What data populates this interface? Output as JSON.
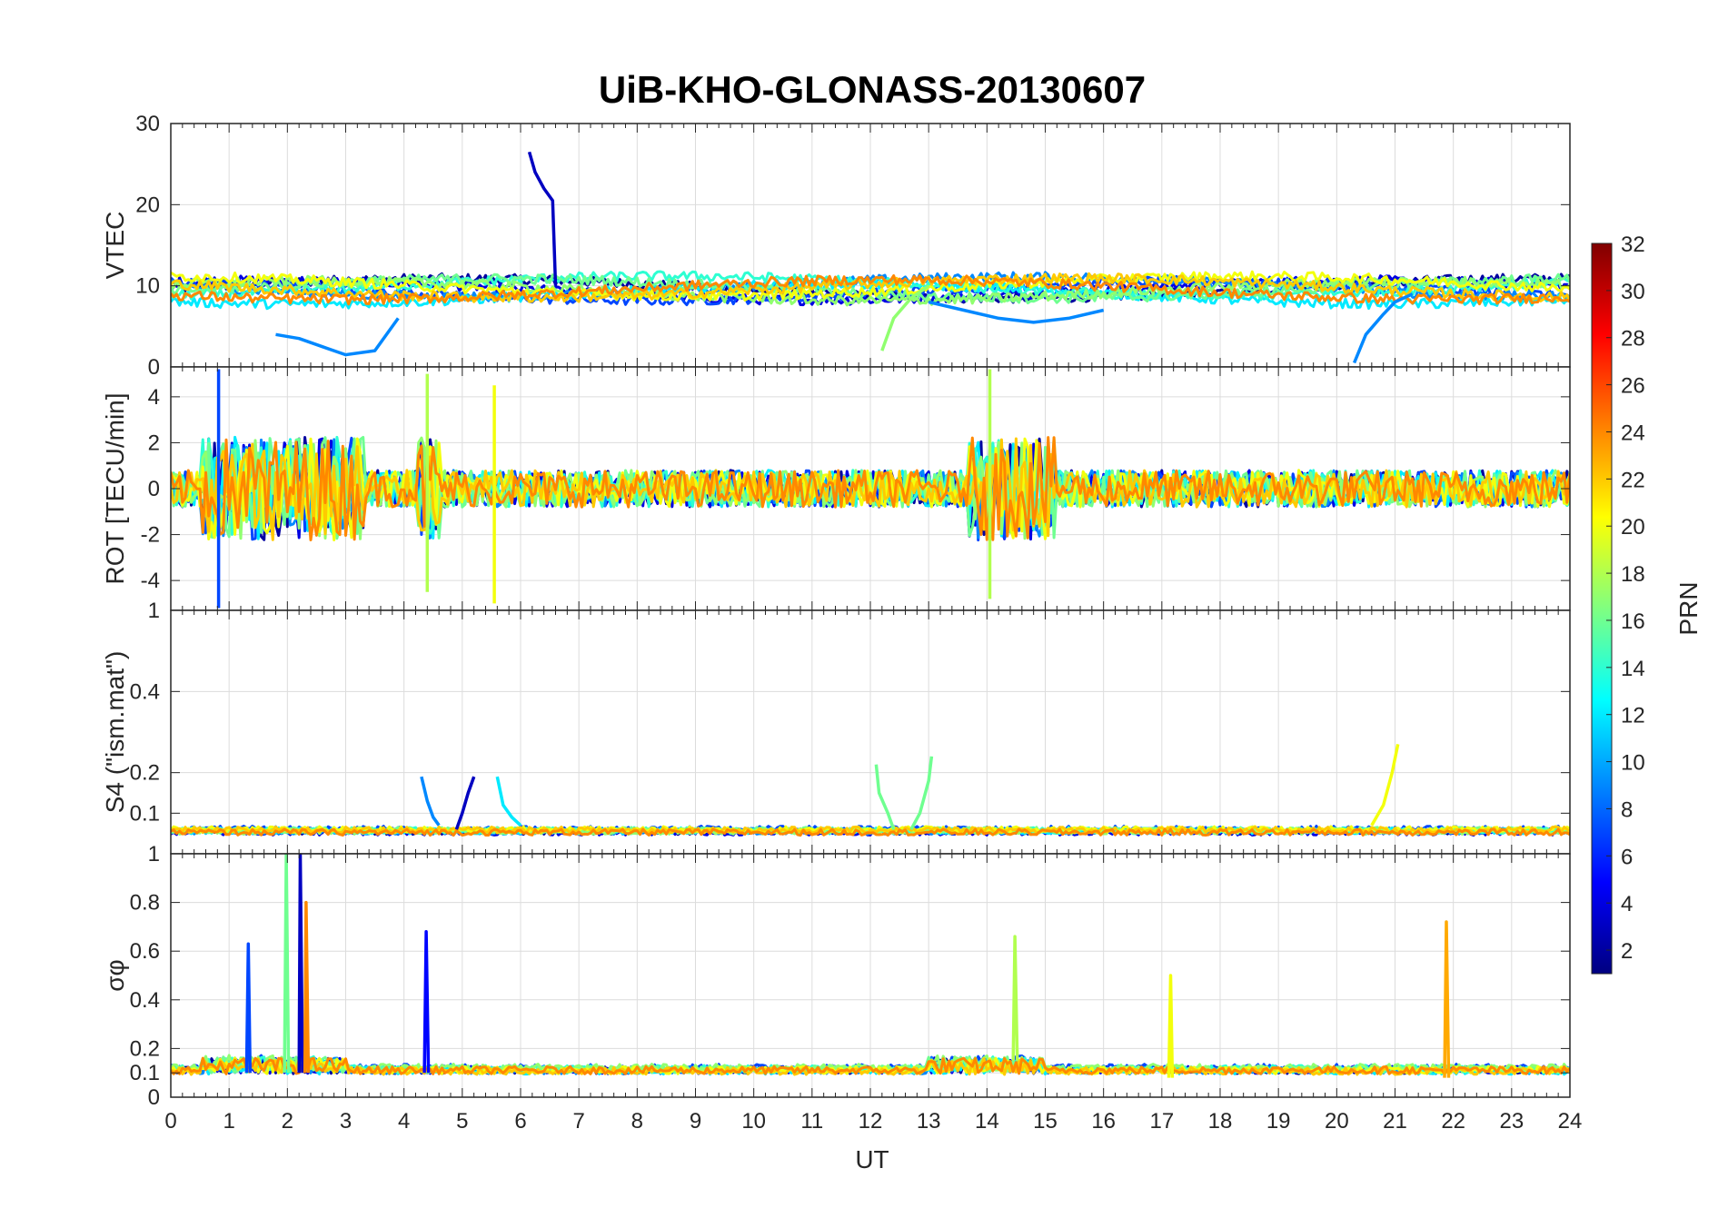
{
  "chart_data": {
    "type": "line",
    "title": "UiB-KHO-GLONASS-20130607",
    "xlabel": "UT",
    "xlim": [
      0,
      24
    ],
    "x_ticks": [
      "0",
      "1",
      "2",
      "3",
      "4",
      "5",
      "6",
      "7",
      "8",
      "9",
      "10",
      "11",
      "12",
      "13",
      "14",
      "15",
      "16",
      "17",
      "18",
      "19",
      "20",
      "21",
      "22",
      "23",
      "24"
    ],
    "grid": true,
    "colormap": "jet",
    "panels": [
      {
        "ylabel": "VTEC",
        "ylim": [
          0,
          30
        ],
        "y_ticks": [
          {
            "v": 0,
            "t": "0"
          },
          {
            "v": 10,
            "t": "10"
          },
          {
            "v": 20,
            "t": "20"
          },
          {
            "v": 30,
            "t": "30"
          }
        ],
        "baseline": 9.5,
        "noise": 1.2
      },
      {
        "ylabel": "ROT [TECU/min]",
        "ylim": [
          -5.3,
          5.3
        ],
        "y_ticks": [
          {
            "v": -4,
            "t": "-4"
          },
          {
            "v": -2,
            "t": "-2"
          },
          {
            "v": 0,
            "t": "0"
          },
          {
            "v": 2,
            "t": "2"
          },
          {
            "v": 4,
            "t": "4"
          }
        ],
        "baseline": 0,
        "noise": 0.8
      },
      {
        "ylabel": "S4 (\"ism.mat\")",
        "ylim": [
          0,
          0.6
        ],
        "y_ticks": [
          {
            "v": 0.1,
            "t": "0.1"
          },
          {
            "v": 0.2,
            "t": "0.2"
          },
          {
            "v": 0.4,
            "t": "0.4"
          }
        ],
        "top_label": "1",
        "baseline": 0.05,
        "noise": 0.015
      },
      {
        "ylabel": "σφ",
        "ylim": [
          0,
          1
        ],
        "y_ticks": [
          {
            "v": 0,
            "t": "0"
          },
          {
            "v": 0.1,
            "t": "0.1"
          },
          {
            "v": 0.2,
            "t": "0.2"
          },
          {
            "v": 0.4,
            "t": "0.4"
          },
          {
            "v": 0.6,
            "t": "0.6"
          },
          {
            "v": 0.8,
            "t": "0.8"
          },
          {
            "v": 1,
            "t": "1"
          }
        ],
        "baseline": 0.1,
        "noise": 0.03
      }
    ],
    "colorbar": {
      "label": "PRN",
      "range": [
        1,
        32
      ],
      "ticks": [
        "2",
        "4",
        "6",
        "8",
        "10",
        "12",
        "14",
        "16",
        "18",
        "20",
        "22",
        "24",
        "26",
        "28",
        "30",
        "32"
      ]
    },
    "series": [
      {
        "prn": 2,
        "segments": [
          [
            0,
            24
          ]
        ]
      },
      {
        "prn": 4,
        "segments": [
          [
            0,
            24
          ]
        ]
      },
      {
        "prn": 7,
        "segments": [
          [
            0,
            24
          ]
        ]
      },
      {
        "prn": 9,
        "segments": [
          [
            0,
            24
          ]
        ]
      },
      {
        "prn": 12,
        "segments": [
          [
            0,
            24
          ]
        ]
      },
      {
        "prn": 14,
        "segments": [
          [
            0,
            24
          ]
        ]
      },
      {
        "prn": 16,
        "segments": [
          [
            0,
            24
          ]
        ]
      },
      {
        "prn": 17,
        "segments": [
          [
            0,
            24
          ]
        ]
      },
      {
        "prn": 20,
        "segments": [
          [
            0,
            24
          ]
        ]
      },
      {
        "prn": 22,
        "segments": [
          [
            0,
            24
          ]
        ]
      },
      {
        "prn": 24,
        "segments": [
          [
            0,
            24
          ]
        ]
      }
    ],
    "features": [
      {
        "panel": 0,
        "prn": 3,
        "x": [
          6.15,
          6.25,
          6.4,
          6.55,
          6.6
        ],
        "y": [
          26.5,
          24,
          22,
          20.5,
          10
        ]
      },
      {
        "panel": 0,
        "prn": 9,
        "x": [
          20.3,
          20.5,
          20.8,
          21.0,
          21.3
        ],
        "y": [
          0.5,
          4,
          6.5,
          8,
          9
        ]
      },
      {
        "panel": 0,
        "prn": 17,
        "x": [
          12.2,
          12.4,
          12.7,
          13.0
        ],
        "y": [
          2,
          6,
          8.5,
          10
        ]
      },
      {
        "panel": 0,
        "prn": 9,
        "x": [
          1.8,
          2.2,
          2.6,
          3.0,
          3.5,
          3.9
        ],
        "y": [
          4,
          3.5,
          2.5,
          1.5,
          2,
          6
        ]
      },
      {
        "panel": 0,
        "prn": 9,
        "x": [
          13.0,
          13.6,
          14.2,
          14.8,
          15.4,
          16.0
        ],
        "y": [
          8,
          7,
          6,
          5.5,
          6,
          7
        ]
      },
      {
        "panel": 1,
        "prn": 7,
        "x": [
          0.82,
          0.82
        ],
        "y": [
          -5.2,
          5.2
        ]
      },
      {
        "panel": 1,
        "prn": 18,
        "x": [
          14.05,
          14.05
        ],
        "y": [
          -4.8,
          5.2
        ]
      },
      {
        "panel": 1,
        "prn": 18,
        "x": [
          4.4,
          4.4
        ],
        "y": [
          -4.5,
          5
        ]
      },
      {
        "panel": 1,
        "prn": 20,
        "x": [
          5.55,
          5.55
        ],
        "y": [
          -5,
          4.5
        ]
      },
      {
        "panel": 2,
        "prn": 16,
        "x": [
          12.1,
          12.15,
          12.3,
          12.4
        ],
        "y": [
          0.22,
          0.15,
          0.1,
          0.06
        ]
      },
      {
        "panel": 2,
        "prn": 16,
        "x": [
          12.7,
          12.85,
          13.0,
          13.05
        ],
        "y": [
          0.06,
          0.1,
          0.18,
          0.24
        ]
      },
      {
        "panel": 2,
        "prn": 20,
        "x": [
          20.6,
          20.8,
          20.95,
          21.05
        ],
        "y": [
          0.07,
          0.12,
          0.2,
          0.27
        ]
      },
      {
        "panel": 2,
        "prn": 9,
        "x": [
          4.3,
          4.4,
          4.5,
          4.6
        ],
        "y": [
          0.19,
          0.13,
          0.09,
          0.07
        ]
      },
      {
        "panel": 2,
        "prn": 12,
        "x": [
          5.6,
          5.7,
          5.85,
          6.0
        ],
        "y": [
          0.19,
          0.12,
          0.09,
          0.07
        ]
      },
      {
        "panel": 2,
        "prn": 3,
        "x": [
          4.9,
          5.0,
          5.1,
          5.2
        ],
        "y": [
          0.06,
          0.1,
          0.15,
          0.19
        ]
      },
      {
        "panel": 3,
        "prn": 3,
        "x": [
          2.2,
          2.22,
          2.26
        ],
        "y": [
          0.1,
          1.0,
          0.1
        ]
      },
      {
        "panel": 3,
        "prn": 16,
        "x": [
          1.95,
          1.98,
          2.02
        ],
        "y": [
          0.1,
          1.0,
          0.1
        ]
      },
      {
        "panel": 3,
        "prn": 24,
        "x": [
          2.3,
          2.32,
          2.36
        ],
        "y": [
          0.1,
          0.8,
          0.1
        ]
      },
      {
        "panel": 3,
        "prn": 23,
        "x": [
          21.85,
          21.88,
          21.92
        ],
        "y": [
          0.08,
          0.72,
          0.08
        ]
      },
      {
        "panel": 3,
        "prn": 7,
        "x": [
          1.3,
          1.33,
          1.36
        ],
        "y": [
          0.1,
          0.63,
          0.1
        ]
      },
      {
        "panel": 3,
        "prn": 18,
        "x": [
          14.45,
          14.48,
          14.52
        ],
        "y": [
          0.15,
          0.66,
          0.15
        ]
      },
      {
        "panel": 3,
        "prn": 5,
        "x": [
          4.35,
          4.38,
          4.42
        ],
        "y": [
          0.1,
          0.68,
          0.1
        ]
      },
      {
        "panel": 3,
        "prn": 20,
        "x": [
          17.12,
          17.15,
          17.18
        ],
        "y": [
          0.08,
          0.5,
          0.08
        ]
      }
    ]
  }
}
